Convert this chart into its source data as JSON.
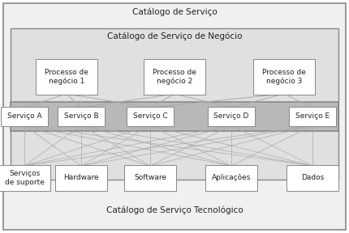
{
  "title_outer": "Catálogo de Serviço",
  "title_negocio": "Catálogo de Serviço de Negócio",
  "title_tecnologico": "Catálogo de Serviço Tecnológico",
  "processos": [
    "Processo de\nnegócio 1",
    "Processo de\nnegócio 2",
    "Processo de\nnegócio 3"
  ],
  "servicos": [
    "Serviço A",
    "Serviço B",
    "Serviço C",
    "Serviço D",
    "Serviço E"
  ],
  "tecnologicos": [
    "Serviços\nde suporte",
    "Hardware",
    "Software",
    "Aplicações",
    "Dados"
  ],
  "bg_outer": "#f0f0f0",
  "bg_negocio": "#e0e0e0",
  "bg_servicos_band": "#b8b8b8",
  "box_fill": "#ffffff",
  "line_color": "#aaaaaa",
  "text_color": "#222222",
  "edge_color": "#888888",
  "font_size_title": 7.5,
  "font_size_box": 6.5,
  "proc_serv_connections": [
    [
      0,
      [
        0,
        1,
        2
      ]
    ],
    [
      1,
      [
        1,
        2,
        3
      ]
    ],
    [
      2,
      [
        2,
        3,
        4
      ]
    ]
  ]
}
